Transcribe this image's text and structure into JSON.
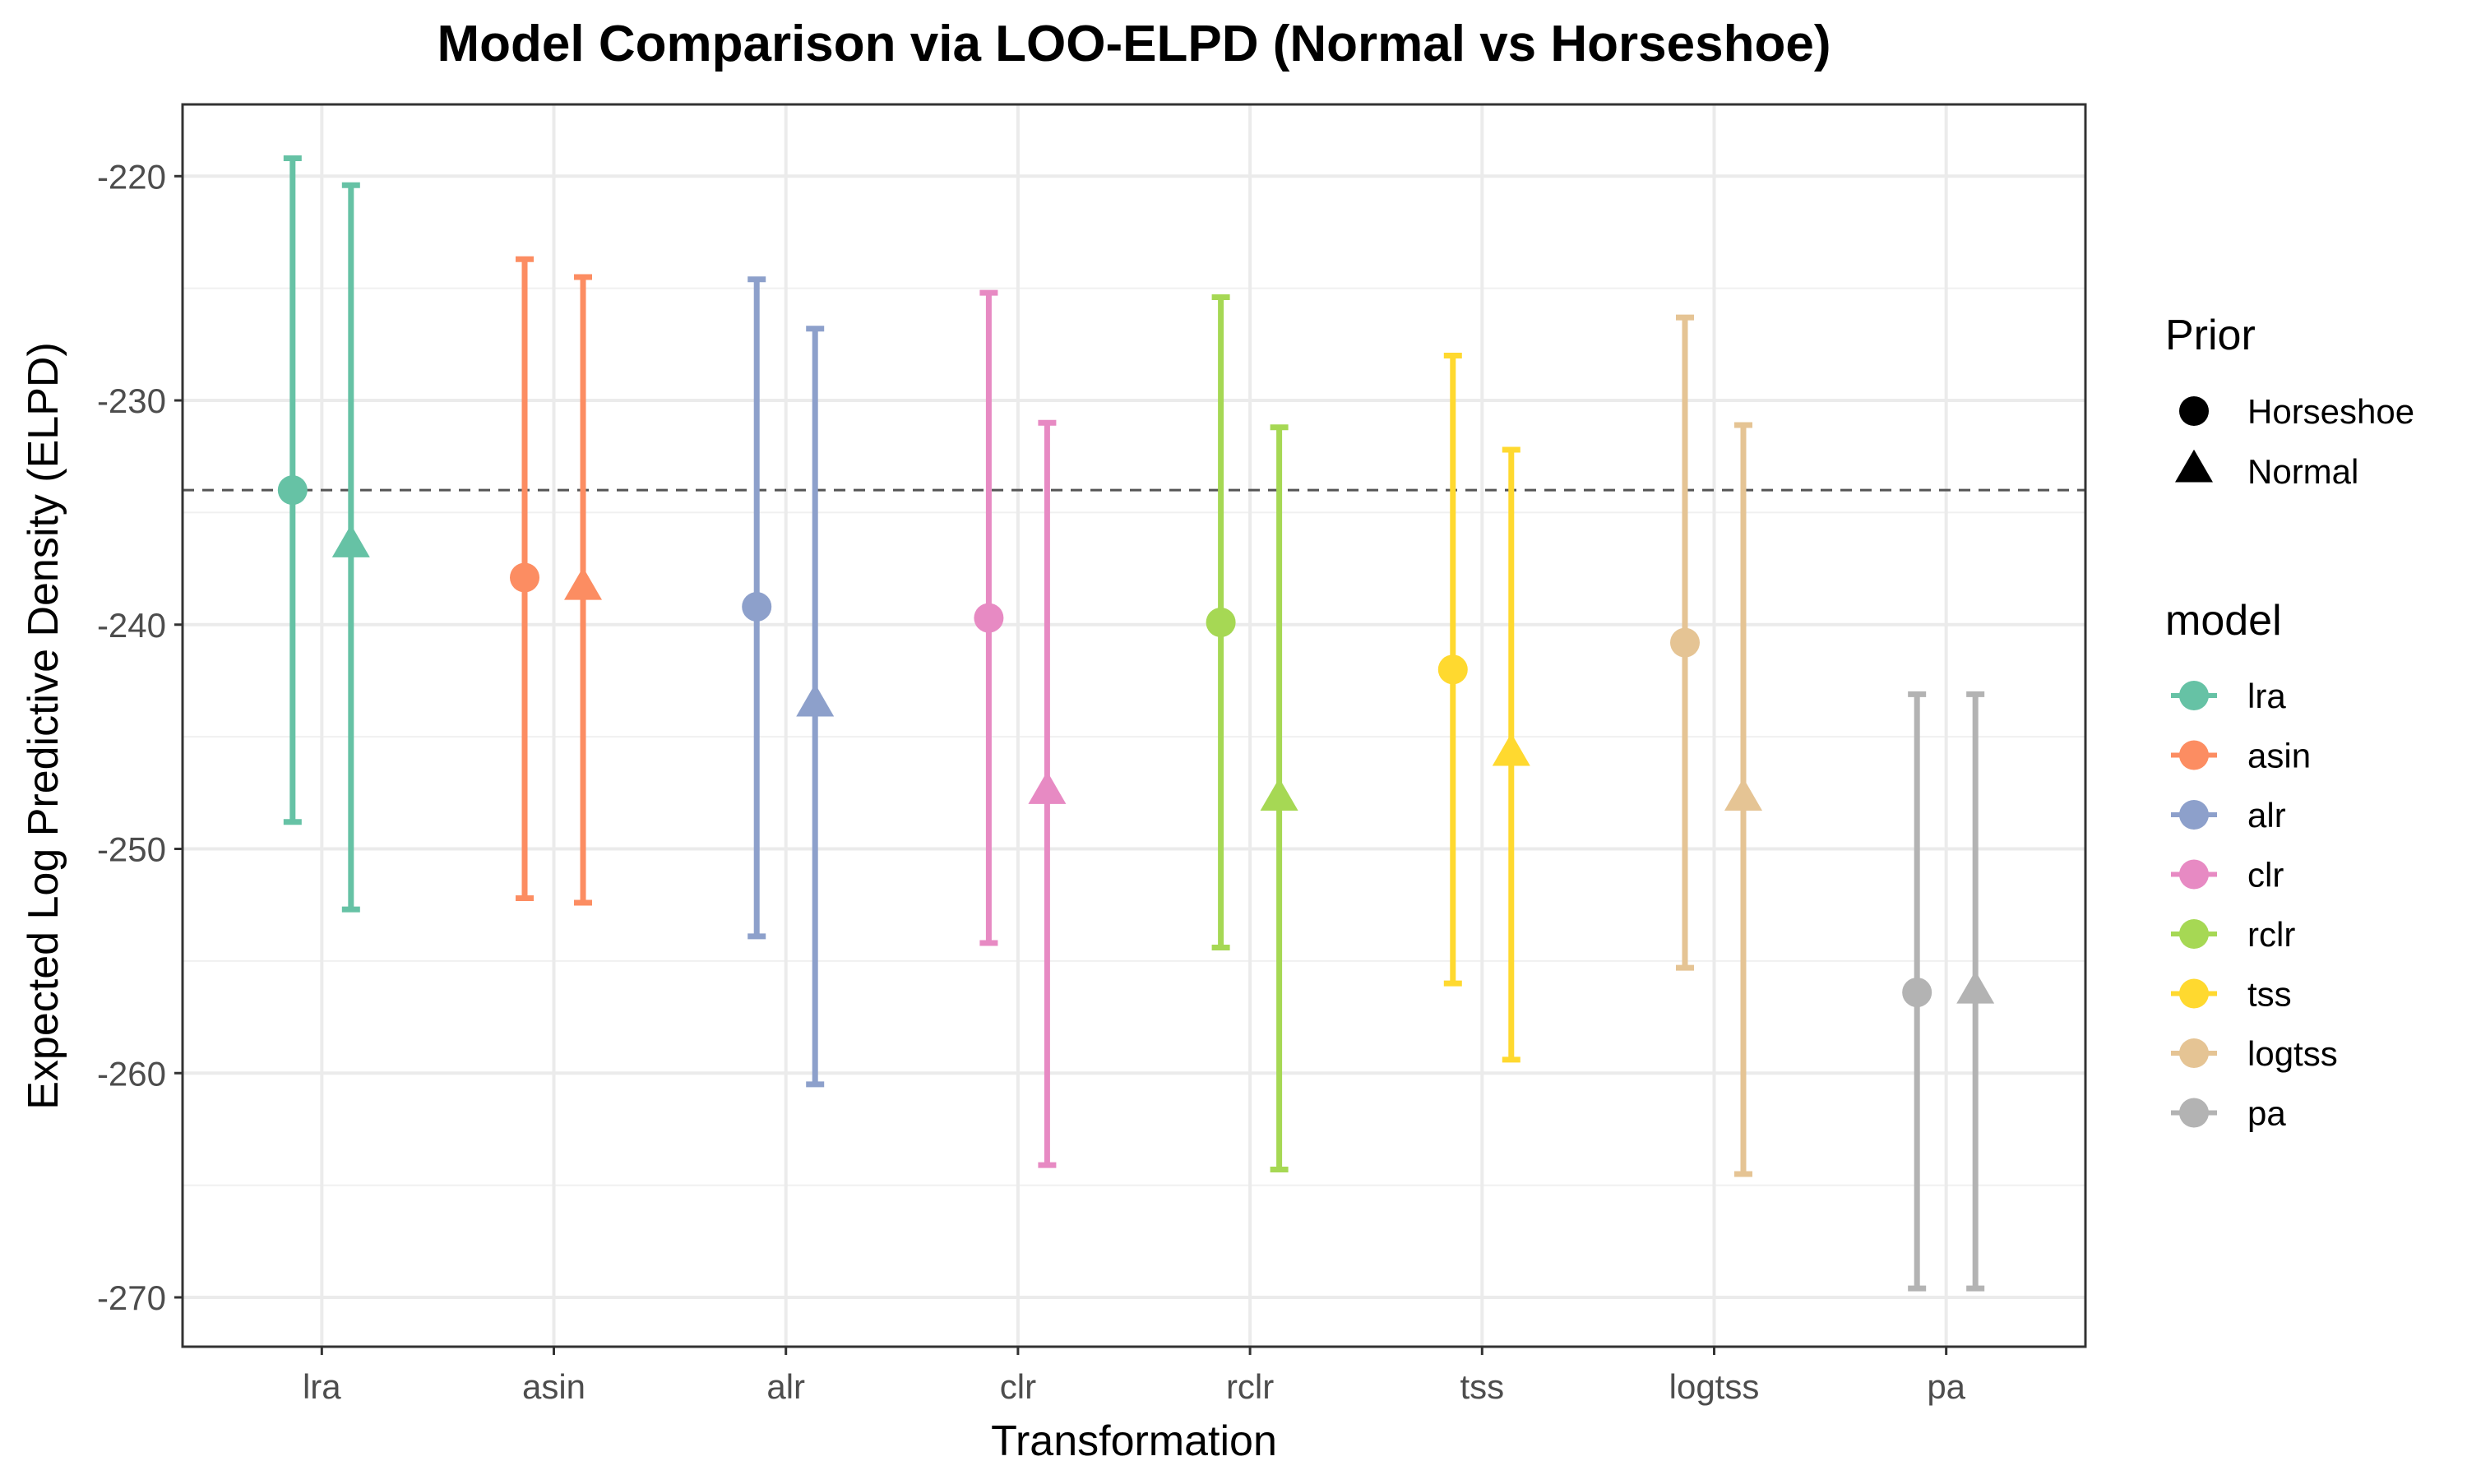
{
  "chart_data": {
    "type": "scatter",
    "title": "Model Comparison via LOO-ELPD (Normal vs Horseshoe)",
    "xlabel": "Transformation",
    "ylabel": "Expected Log Predictive Density (ELPD)",
    "categories": [
      "lra",
      "asin",
      "alr",
      "clr",
      "rclr",
      "tss",
      "logtss",
      "pa"
    ],
    "ylim": [
      -272.2,
      -216.8
    ],
    "yticks": [
      -270,
      -260,
      -250,
      -240,
      -230,
      -220
    ],
    "reference_line": -234.0,
    "grid": true,
    "legend_placement": "right",
    "legend_prior": {
      "title": "Prior",
      "entries": [
        {
          "label": "Horseshoe",
          "shape": "circle"
        },
        {
          "label": "Normal",
          "shape": "triangle"
        }
      ]
    },
    "legend_model": {
      "title": "model",
      "entries": [
        {
          "label": "lra",
          "color": "#66C2A5"
        },
        {
          "label": "asin",
          "color": "#FC8D62"
        },
        {
          "label": "alr",
          "color": "#8DA0CB"
        },
        {
          "label": "clr",
          "color": "#E78AC3"
        },
        {
          "label": "rclr",
          "color": "#A6D854"
        },
        {
          "label": "tss",
          "color": "#FFD92F"
        },
        {
          "label": "logtss",
          "color": "#E5C494"
        },
        {
          "label": "pa",
          "color": "#B3B3B3"
        }
      ]
    },
    "series": [
      {
        "name": "Horseshoe",
        "shape": "circle",
        "points": [
          {
            "model": "lra",
            "y": -234.0,
            "low": -248.8,
            "high": -219.2
          },
          {
            "model": "asin",
            "y": -237.9,
            "low": -252.2,
            "high": -223.7
          },
          {
            "model": "alr",
            "y": -239.2,
            "low": -253.9,
            "high": -224.6
          },
          {
            "model": "clr",
            "y": -239.7,
            "low": -254.2,
            "high": -225.2
          },
          {
            "model": "rclr",
            "y": -239.9,
            "low": -254.4,
            "high": -225.4
          },
          {
            "model": "tss",
            "y": -242.0,
            "low": -256.0,
            "high": -228.0
          },
          {
            "model": "logtss",
            "y": -240.8,
            "low": -255.3,
            "high": -226.3
          },
          {
            "model": "pa",
            "y": -256.4,
            "low": -269.6,
            "high": -243.1
          }
        ]
      },
      {
        "name": "Normal",
        "shape": "triangle",
        "points": [
          {
            "model": "lra",
            "y": -236.5,
            "low": -252.7,
            "high": -220.4
          },
          {
            "model": "asin",
            "y": -238.4,
            "low": -252.4,
            "high": -224.5
          },
          {
            "model": "alr",
            "y": -243.6,
            "low": -260.5,
            "high": -226.8
          },
          {
            "model": "clr",
            "y": -247.5,
            "low": -264.1,
            "high": -231.0
          },
          {
            "model": "rclr",
            "y": -247.8,
            "low": -264.3,
            "high": -231.2
          },
          {
            "model": "tss",
            "y": -245.8,
            "low": -259.4,
            "high": -232.2
          },
          {
            "model": "logtss",
            "y": -247.8,
            "low": -264.5,
            "high": -231.1
          },
          {
            "model": "pa",
            "y": -256.4,
            "low": -269.6,
            "high": -243.1
          }
        ]
      }
    ]
  }
}
